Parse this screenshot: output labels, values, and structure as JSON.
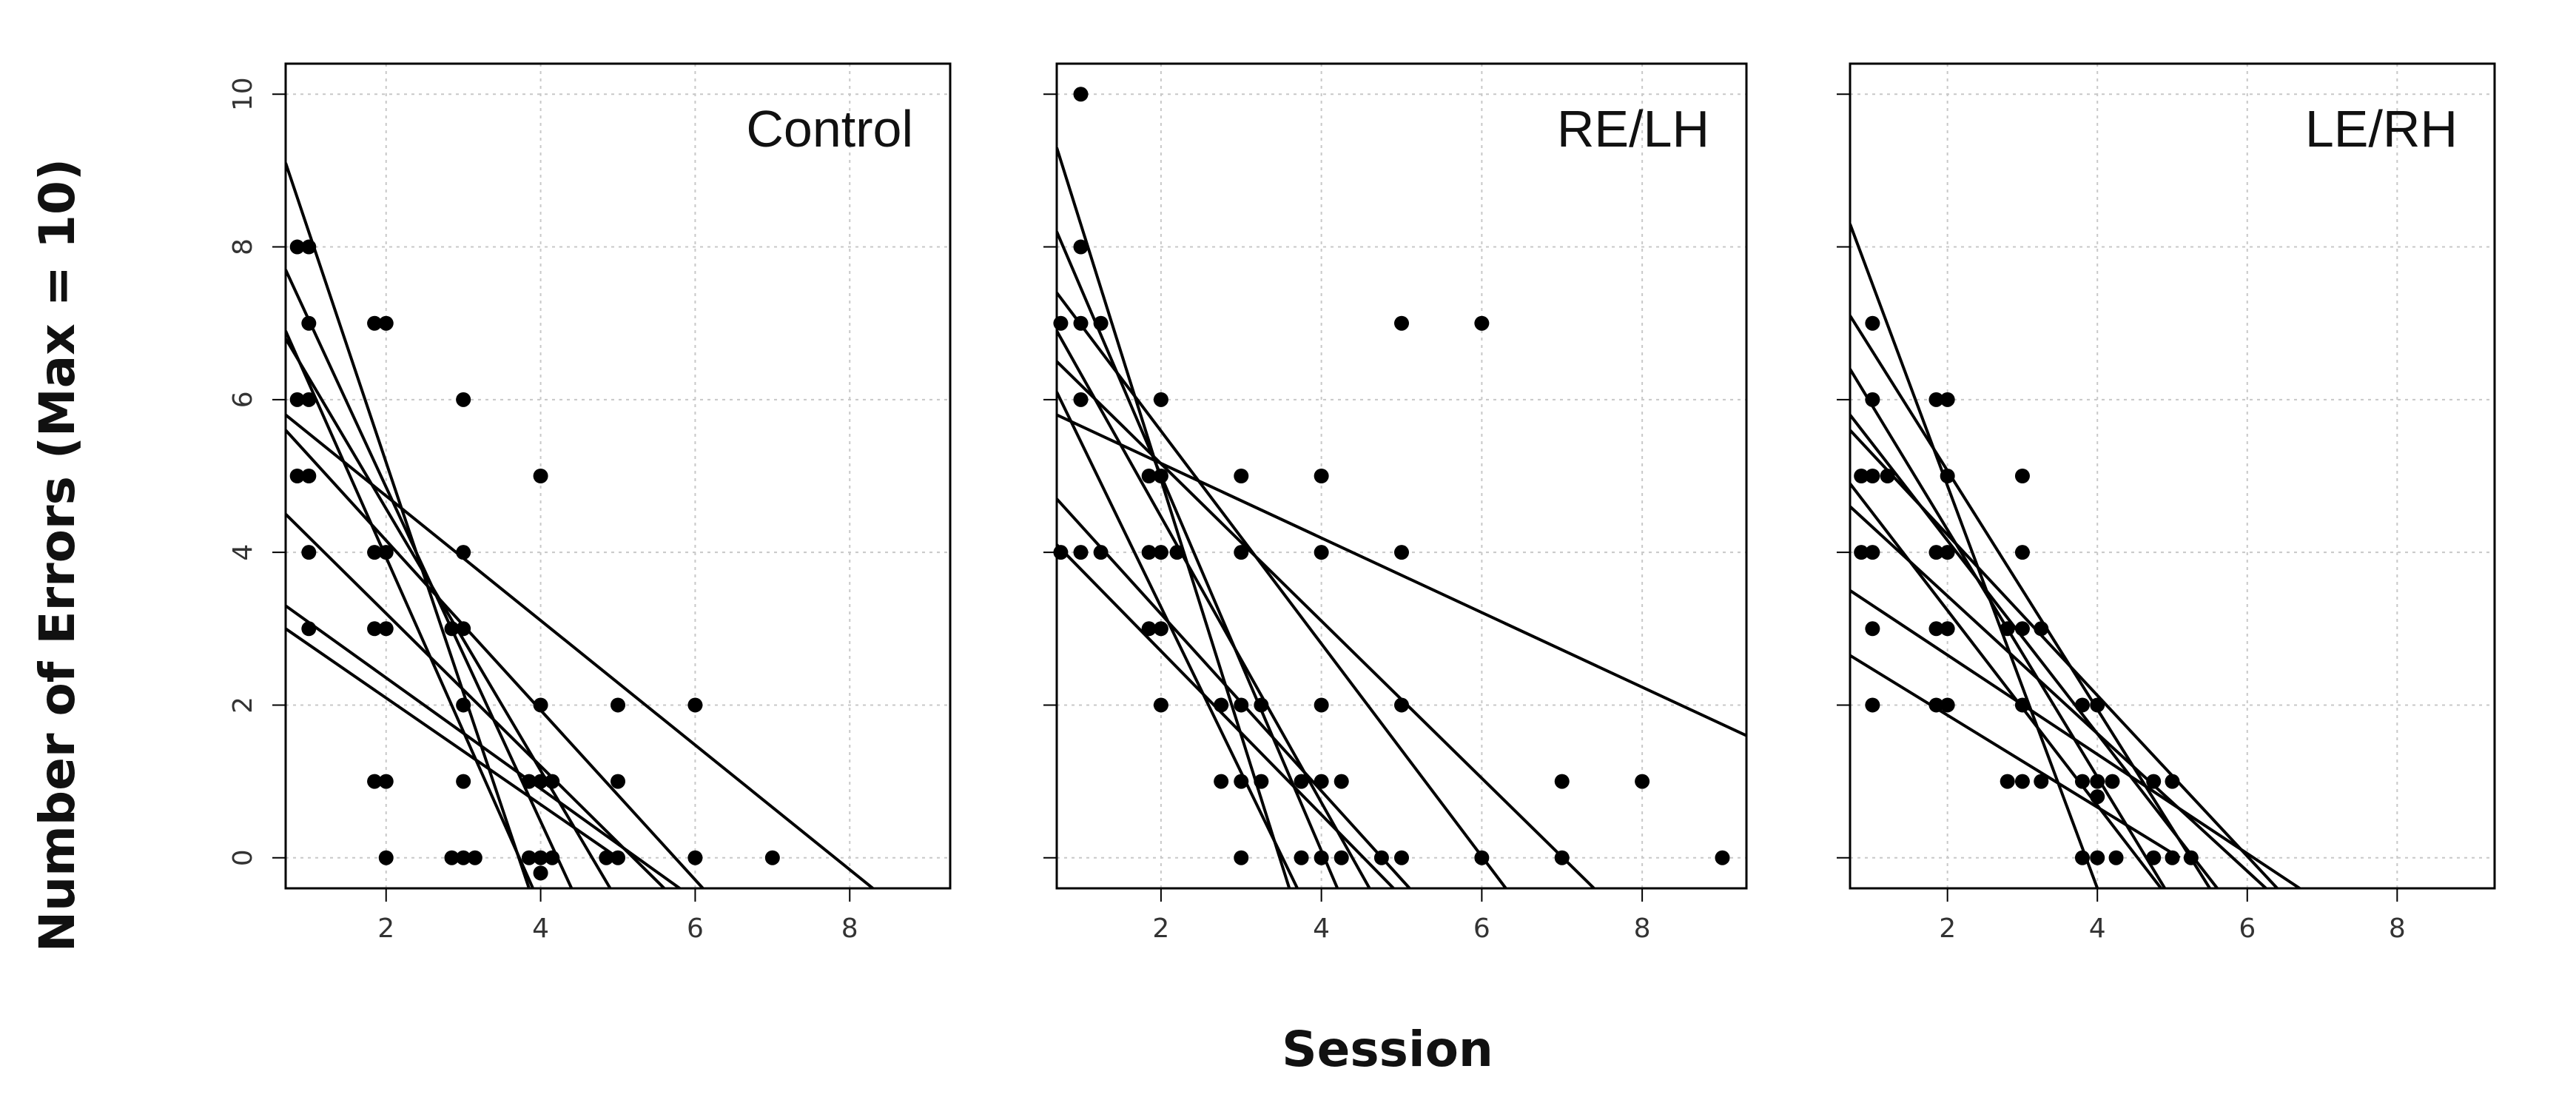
{
  "chart_data": {
    "type": "scatter",
    "xlabel": "Session",
    "ylabel": "Number of Errors (Max = 10)",
    "xlim": [
      0.7,
      9.3
    ],
    "ylim": [
      -0.4,
      10.4
    ],
    "xticks": [
      2,
      4,
      6,
      8
    ],
    "yticks": [
      0,
      2,
      4,
      6,
      8,
      10
    ],
    "grid": true,
    "panels": [
      {
        "title": "Control",
        "points": [
          [
            0.85,
            8
          ],
          [
            1.0,
            8
          ],
          [
            1.0,
            7
          ],
          [
            0.85,
            6
          ],
          [
            1.0,
            6
          ],
          [
            0.85,
            5
          ],
          [
            1.0,
            5
          ],
          [
            1.0,
            4
          ],
          [
            1.0,
            3
          ],
          [
            1.85,
            7
          ],
          [
            2.0,
            7
          ],
          [
            1.85,
            4
          ],
          [
            2.0,
            4
          ],
          [
            1.85,
            3
          ],
          [
            2.0,
            3
          ],
          [
            1.85,
            1
          ],
          [
            2.0,
            1
          ],
          [
            2.0,
            0
          ],
          [
            3.0,
            6
          ],
          [
            3.0,
            4
          ],
          [
            2.85,
            3
          ],
          [
            3.0,
            3
          ],
          [
            3.0,
            2
          ],
          [
            3.0,
            1
          ],
          [
            2.85,
            0
          ],
          [
            3.0,
            0
          ],
          [
            3.15,
            0
          ],
          [
            4.0,
            5
          ],
          [
            4.0,
            2
          ],
          [
            3.85,
            1
          ],
          [
            4.0,
            1
          ],
          [
            4.15,
            1
          ],
          [
            3.85,
            0
          ],
          [
            4.0,
            0
          ],
          [
            4.15,
            0
          ],
          [
            4.0,
            -0.2
          ],
          [
            5.0,
            2
          ],
          [
            5.0,
            1
          ],
          [
            4.85,
            0
          ],
          [
            5.0,
            0
          ],
          [
            6.0,
            2
          ],
          [
            6.0,
            0
          ],
          [
            7.0,
            0
          ]
        ],
        "lines": [
          [
            0.7,
            9.1,
            3.85,
            -0.4
          ],
          [
            0.7,
            7.7,
            4.4,
            -0.4
          ],
          [
            0.7,
            6.9,
            3.9,
            -0.4
          ],
          [
            0.7,
            6.8,
            4.9,
            -0.4
          ],
          [
            0.7,
            5.8,
            8.3,
            -0.4
          ],
          [
            0.7,
            5.6,
            6.1,
            -0.4
          ],
          [
            0.7,
            4.5,
            5.6,
            -0.4
          ],
          [
            0.7,
            3.3,
            5.8,
            -0.4
          ],
          [
            0.7,
            3.0,
            5.0,
            0.0
          ]
        ]
      },
      {
        "title": "RE/LH",
        "points": [
          [
            1.0,
            10
          ],
          [
            1.0,
            8
          ],
          [
            0.75,
            7
          ],
          [
            1.0,
            7
          ],
          [
            1.25,
            7
          ],
          [
            1.0,
            6
          ],
          [
            2.0,
            6
          ],
          [
            1.85,
            5
          ],
          [
            2.0,
            5
          ],
          [
            0.75,
            4
          ],
          [
            1.0,
            4
          ],
          [
            1.25,
            4
          ],
          [
            1.85,
            4
          ],
          [
            2.0,
            4
          ],
          [
            2.2,
            4
          ],
          [
            1.85,
            3
          ],
          [
            2.0,
            3
          ],
          [
            2.0,
            2
          ],
          [
            3.0,
            5
          ],
          [
            3.0,
            4
          ],
          [
            2.75,
            2
          ],
          [
            3.0,
            2
          ],
          [
            3.25,
            2
          ],
          [
            2.75,
            1
          ],
          [
            3.0,
            1
          ],
          [
            3.25,
            1
          ],
          [
            3.0,
            0
          ],
          [
            4.0,
            5
          ],
          [
            4.0,
            4
          ],
          [
            4.0,
            2
          ],
          [
            3.75,
            1
          ],
          [
            4.0,
            1
          ],
          [
            4.25,
            1
          ],
          [
            3.75,
            0
          ],
          [
            4.0,
            0
          ],
          [
            4.25,
            0
          ],
          [
            5.0,
            7
          ],
          [
            5.0,
            4
          ],
          [
            5.0,
            2
          ],
          [
            4.75,
            0
          ],
          [
            5.0,
            0
          ],
          [
            6.0,
            7
          ],
          [
            6.0,
            0
          ],
          [
            7.0,
            1
          ],
          [
            7.0,
            0
          ],
          [
            8.0,
            1
          ],
          [
            9.0,
            0
          ]
        ],
        "lines": [
          [
            0.7,
            9.3,
            3.6,
            -0.4
          ],
          [
            0.7,
            8.2,
            4.2,
            -0.4
          ],
          [
            0.7,
            7.4,
            6.3,
            -0.4
          ],
          [
            0.7,
            6.9,
            4.6,
            -0.4
          ],
          [
            0.7,
            6.5,
            7.4,
            -0.4
          ],
          [
            0.7,
            6.1,
            3.7,
            -0.4
          ],
          [
            0.7,
            5.8,
            9.3,
            1.6
          ],
          [
            0.7,
            4.7,
            5.1,
            -0.4
          ],
          [
            0.7,
            4.1,
            4.9,
            -0.4
          ]
        ]
      },
      {
        "title": "LE/RH",
        "points": [
          [
            0.85,
            5
          ],
          [
            1.0,
            5
          ],
          [
            1.2,
            5
          ],
          [
            0.85,
            4
          ],
          [
            1.0,
            4
          ],
          [
            1.0,
            7
          ],
          [
            1.0,
            6
          ],
          [
            1.0,
            3
          ],
          [
            1.0,
            2
          ],
          [
            1.85,
            6
          ],
          [
            2.0,
            6
          ],
          [
            2.0,
            5
          ],
          [
            1.85,
            4
          ],
          [
            2.0,
            4
          ],
          [
            1.85,
            3
          ],
          [
            2.0,
            3
          ],
          [
            1.85,
            2
          ],
          [
            2.0,
            2
          ],
          [
            3.0,
            5
          ],
          [
            3.0,
            4
          ],
          [
            2.8,
            3
          ],
          [
            3.0,
            3
          ],
          [
            3.25,
            3
          ],
          [
            3.0,
            2
          ],
          [
            2.8,
            1
          ],
          [
            3.0,
            1
          ],
          [
            3.25,
            1
          ],
          [
            3.8,
            2
          ],
          [
            4.0,
            2
          ],
          [
            3.8,
            1
          ],
          [
            4.0,
            1
          ],
          [
            4.2,
            1
          ],
          [
            4.0,
            0.8
          ],
          [
            3.8,
            0
          ],
          [
            4.0,
            0
          ],
          [
            4.25,
            0
          ],
          [
            4.75,
            1
          ],
          [
            5.0,
            1
          ],
          [
            4.75,
            0
          ],
          [
            5.0,
            0
          ],
          [
            5.25,
            0
          ]
        ],
        "lines": [
          [
            0.7,
            8.3,
            4.0,
            -0.4
          ],
          [
            0.7,
            7.1,
            5.5,
            -0.4
          ],
          [
            0.7,
            6.4,
            4.9,
            -0.4
          ],
          [
            0.7,
            5.8,
            5.6,
            -0.4
          ],
          [
            0.7,
            5.6,
            6.4,
            -0.4
          ],
          [
            0.7,
            4.9,
            4.85,
            -0.4
          ],
          [
            0.7,
            4.6,
            6.25,
            -0.4
          ],
          [
            0.7,
            3.5,
            6.7,
            -0.4
          ],
          [
            0.7,
            2.65,
            5.1,
            0.0
          ]
        ]
      }
    ]
  }
}
